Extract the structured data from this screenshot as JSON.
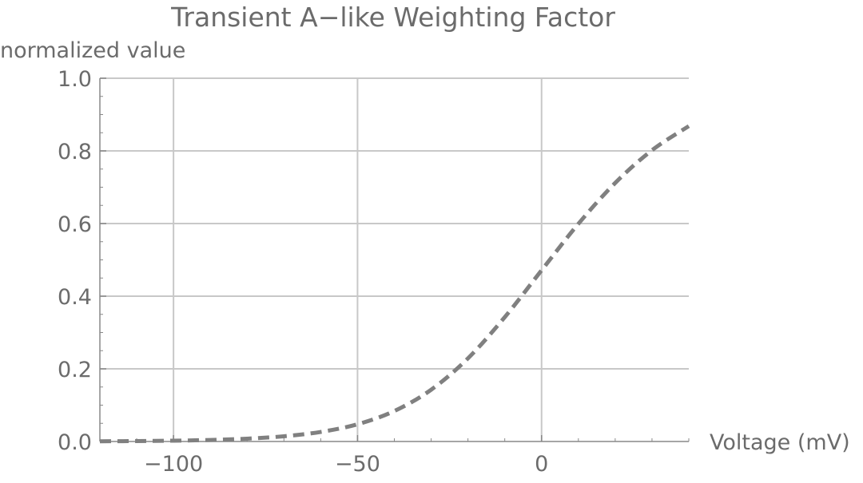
{
  "chart_data": {
    "type": "line",
    "title": "Transient A−like Weighting Factor",
    "xlabel": "Voltage (mV)",
    "ylabel": "normalized value",
    "xlim": [
      -120,
      40
    ],
    "ylim": [
      0,
      1
    ],
    "x_ticks": [
      {
        "value": -100,
        "label": "−100"
      },
      {
        "value": -50,
        "label": "−50"
      },
      {
        "value": 0,
        "label": "0"
      }
    ],
    "y_ticks": [
      {
        "value": 0,
        "label": "0.0"
      },
      {
        "value": 0.2,
        "label": "0.2"
      },
      {
        "value": 0.4,
        "label": "0.4"
      },
      {
        "value": 0.6,
        "label": "0.6"
      },
      {
        "value": 0.8,
        "label": "0.8"
      },
      {
        "value": 1.0,
        "label": "1.0"
      }
    ],
    "grid": true,
    "series": [
      {
        "style": "dashed",
        "color": "#808080",
        "x": [
          -120,
          -110,
          -100,
          -90,
          -80,
          -70,
          -60,
          -50,
          -40,
          -30,
          -20,
          -10,
          0,
          10,
          20,
          30,
          40
        ],
        "y": [
          0.0006,
          0.0012,
          0.0022,
          0.0042,
          0.0078,
          0.0144,
          0.0263,
          0.0474,
          0.0839,
          0.1425,
          0.2289,
          0.3423,
          0.4713,
          0.5993,
          0.7117,
          0.8018,
          0.8683
        ]
      }
    ]
  },
  "colors": {
    "grid": "#c8c8c8",
    "axis": "#888888",
    "text": "#6b6b6b",
    "series": "#808080"
  }
}
